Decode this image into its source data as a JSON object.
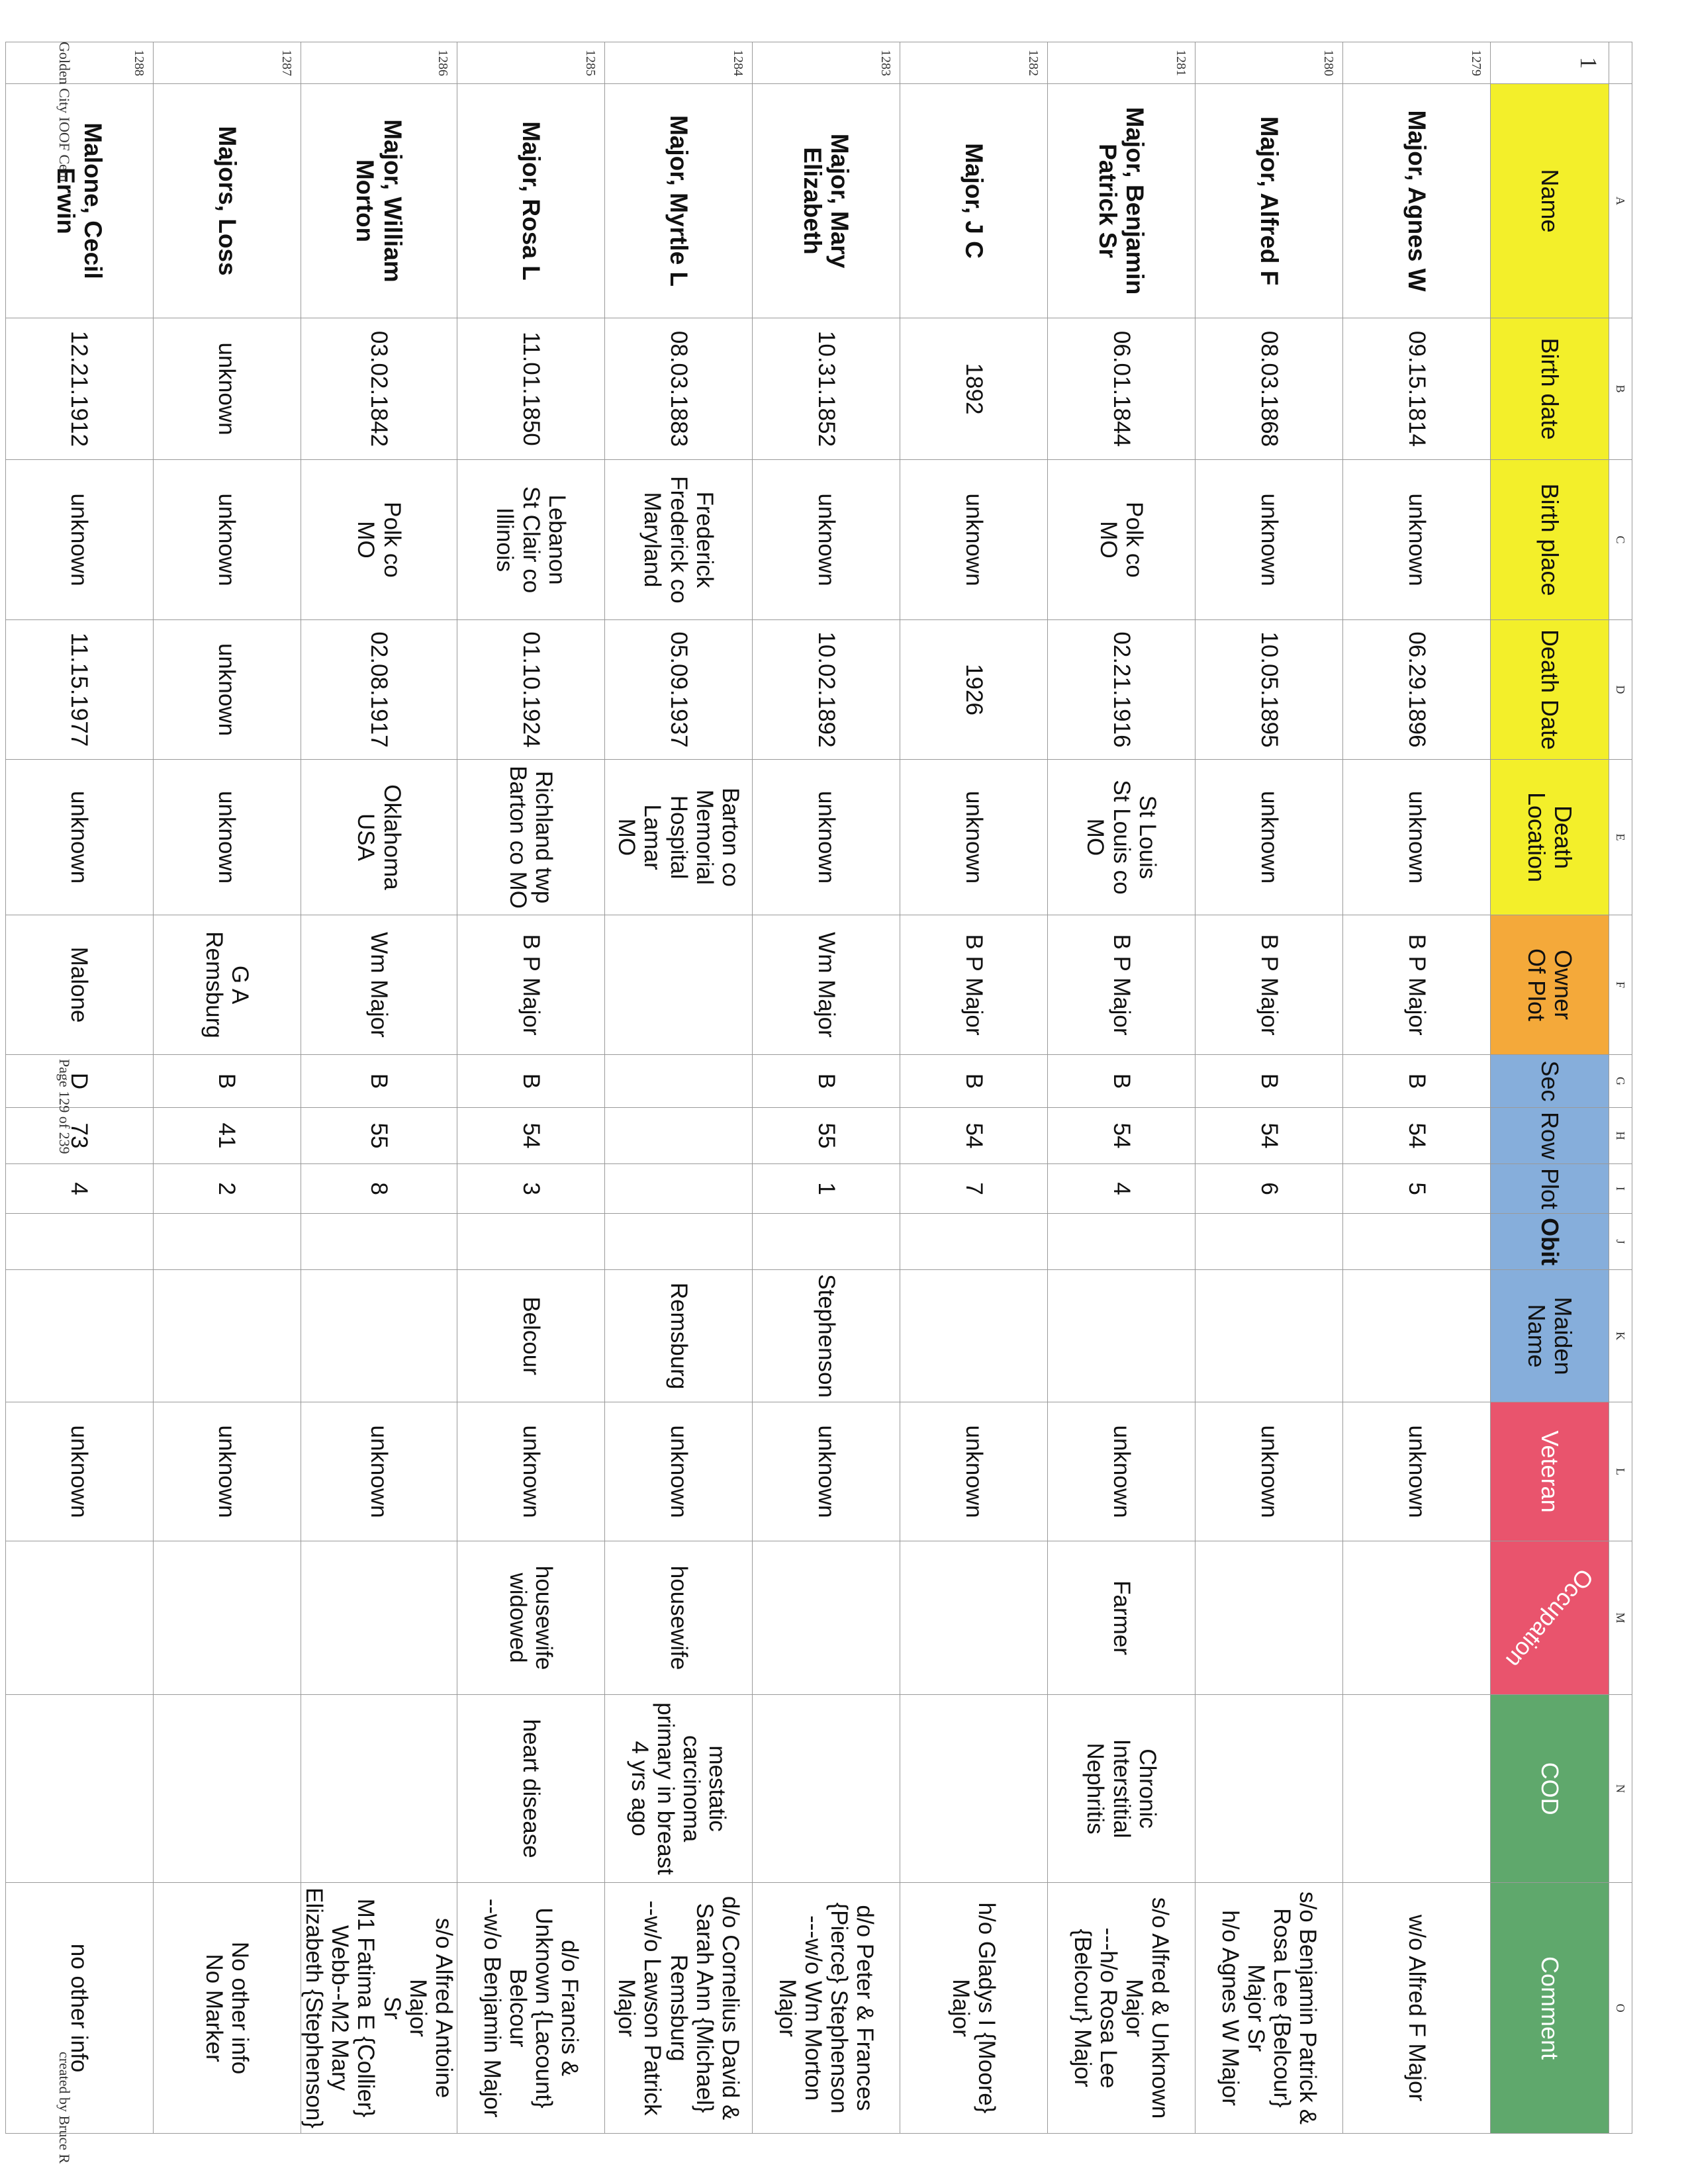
{
  "column_letters": [
    "",
    "A",
    "B",
    "C",
    "D",
    "E",
    "F",
    "G",
    "H",
    "I",
    "J",
    "K",
    "L",
    "M",
    "N",
    "O"
  ],
  "header_row_number": "1",
  "headers": [
    {
      "label": "Name",
      "color": "#f3ef2a"
    },
    {
      "label": "Birth date",
      "color": "#f3ef2a"
    },
    {
      "label": "Birth place",
      "color": "#f3ef2a"
    },
    {
      "label": "Death Date",
      "color": "#f3ef2a"
    },
    {
      "label": "Death\nLocation",
      "color": "#f3ef2a"
    },
    {
      "label": "Owner\nOf Plot",
      "color": "#f4a93a"
    },
    {
      "label": "Sec",
      "color": "#86aedb"
    },
    {
      "label": "Row",
      "color": "#86aedb"
    },
    {
      "label": "Plot",
      "color": "#86aedb"
    },
    {
      "label": "Obit",
      "color": "#86aedb"
    },
    {
      "label": "Maiden\nName",
      "color": "#86aedb"
    },
    {
      "label": "Veteran",
      "color": "#e9546d"
    },
    {
      "label": "Occupation",
      "color": "#e9546d"
    },
    {
      "label": "COD",
      "color": "#5fa86c"
    },
    {
      "label": "Comment",
      "color": "#5fa86c"
    }
  ],
  "rows": [
    {
      "num": "1279",
      "cells": [
        "Major, Agnes W",
        "09.15.1814",
        "unknown",
        "06.29.1896",
        "unknown",
        "B P Major",
        "B",
        "54",
        "5",
        "",
        "",
        "unknown",
        "",
        "",
        "w/o Alfred F Major"
      ]
    },
    {
      "num": "1280",
      "cells": [
        "Major, Alfred F",
        "08.03.1868",
        "unknown",
        "10.05.1895",
        "unknown",
        "B P Major",
        "B",
        "54",
        "6",
        "",
        "",
        "unknown",
        "",
        "",
        "s/o Benjamin Patrick &\nRosa Lee {Belcour}\nMajor Sr\nh/o Agnes W Major"
      ]
    },
    {
      "num": "1281",
      "cells": [
        "Major, Benjamin\nPatrick Sr",
        "06.01.1844",
        "Polk co\nMO",
        "02.21.1916",
        "St Louis\nSt Louis co\nMO",
        "B P Major",
        "B",
        "54",
        "4",
        "",
        "",
        "unknown",
        "Farmer",
        "Chronic\nInterstitial\nNephritis",
        "s/o Alfred & Unknown\nMajor\n---h/o Rosa Lee\n{Belcour} Major"
      ]
    },
    {
      "num": "1282",
      "cells": [
        "Major, J C",
        "1892",
        "unknown",
        "1926",
        "unknown",
        "B P Major",
        "B",
        "54",
        "7",
        "",
        "",
        "unknown",
        "",
        "",
        "h/o Gladys I {Moore}\nMajor"
      ]
    },
    {
      "num": "1283",
      "cells": [
        "Major, Mary\nElizabeth",
        "10.31.1852",
        "unknown",
        "10.02.1892",
        "unknown",
        "Wm Major",
        "B",
        "55",
        "1",
        "",
        "Stephenson",
        "unknown",
        "",
        "",
        "d/o Peter & Frances\n{Pierce} Stephenson\n---w/o Wm Morton\nMajor"
      ]
    },
    {
      "num": "1284",
      "cells": [
        "Major, Myrtle L",
        "08.03.1883",
        "Frederick\nFrederick co\nMaryland",
        "05.09.1937",
        "Barton co\nMemorial\nHospital\nLamar\nMO",
        "",
        "",
        "",
        "",
        "",
        "Remsburg",
        "unknown",
        "housewife",
        "mestatic\ncarcinoma\nprimary in breast\n4 yrs ago",
        "d/o Cornelius David &\nSarah Ann {Michael}\nRemsburg\n--w/o Lawson Patrick\nMajor"
      ]
    },
    {
      "num": "1285",
      "cells": [
        "Major, Rosa L",
        "11.01.1850",
        "Lebanon\nSt Clair co\nIllinois",
        "01.10.1924",
        "Richland twp\nBarton co  MO",
        "B P Major",
        "B",
        "54",
        "3",
        "",
        "Belcour",
        "unknown",
        "housewife\nwidowed",
        "heart disease",
        "d/o Francis &\nUnknown {Lacount}\nBelcour\n--w/o Benjamin Major"
      ]
    },
    {
      "num": "1286",
      "cells": [
        "Major, William\nMorton",
        "03.02.1842",
        "Polk co\nMO",
        "02.08.1917",
        "Oklahoma\nUSA",
        "Wm Major",
        "B",
        "55",
        "8",
        "",
        "",
        "unknown",
        "",
        "",
        "s/o Alfred Antoine Major\nSr\nM1 Fatima E {Collier}\nWebb--M2 Mary\nElizabeth {Stephenson}"
      ]
    },
    {
      "num": "1287",
      "cells": [
        "Majors, Loss",
        "unknown",
        "unknown",
        "unknown",
        "unknown",
        "G A\nRemsburg",
        "B",
        "41",
        "2",
        "",
        "",
        "unknown",
        "",
        "",
        "No other info\nNo Marker"
      ]
    },
    {
      "num": "1288",
      "cells": [
        "Malone, Cecil\nErwin",
        "12.21.1912",
        "unknown",
        "11.15.1977",
        "unknown",
        "Malone",
        "D",
        "73",
        "4",
        "",
        "",
        "unknown",
        "",
        "",
        "no other info"
      ]
    }
  ],
  "footer": {
    "left": "Golden City IOOF Cem",
    "center": "Page 129 of 239",
    "right": "created by Bruce R"
  }
}
